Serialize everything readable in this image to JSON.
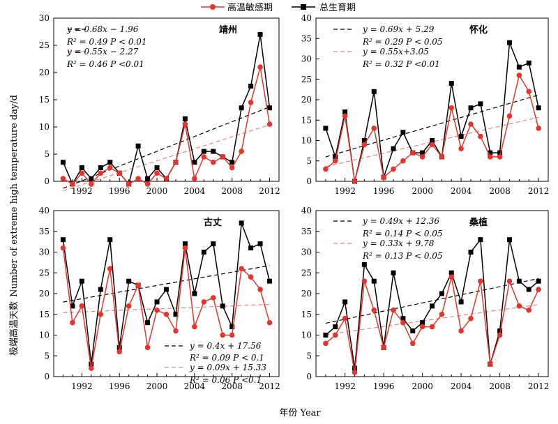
{
  "legend": {
    "series_red": "高温敏感期",
    "series_black": "总生育期"
  },
  "axes": {
    "ylabel": "极端高温天数",
    "ylabel_en": "Number of extreme high temperature day/d",
    "xlabel": "年份 Year"
  },
  "colors": {
    "black": "#000000",
    "red": "#e8332a",
    "red_trend": "#f08080"
  },
  "chart_data": [
    {
      "type": "line",
      "title": "靖州",
      "x": [
        1990,
        1991,
        1992,
        1993,
        1994,
        1995,
        1996,
        1997,
        1998,
        1999,
        2000,
        2001,
        2002,
        2003,
        2004,
        2005,
        2006,
        2007,
        2008,
        2009,
        2010,
        2011,
        2012
      ],
      "series": [
        {
          "name": "总生育期",
          "color": "#000000",
          "marker": "square",
          "values": [
            3.5,
            -0.5,
            2.5,
            0.5,
            2.5,
            3.5,
            1.5,
            -0.5,
            6.5,
            0.5,
            2.5,
            0.5,
            3.5,
            11.5,
            3.5,
            5.5,
            5.5,
            4.5,
            3.5,
            13.5,
            17.5,
            27,
            13.5
          ]
        },
        {
          "name": "高温敏感期",
          "color": "#e8332a",
          "marker": "circle",
          "values": [
            0.5,
            -0.5,
            1.5,
            -0.5,
            1.5,
            2.5,
            1.5,
            -0.5,
            0.5,
            -0.5,
            1.5,
            0.5,
            3.5,
            10.5,
            0.5,
            4.5,
            3.5,
            4.5,
            2.5,
            5.5,
            14.5,
            21,
            10.5
          ]
        }
      ],
      "trends": [
        {
          "color": "#000000",
          "slope": 0.68,
          "intercept": -1.96,
          "eq": "y = 0.68x − 1.96",
          "r2": "R² = 0.49",
          "p": "P < 0.01"
        },
        {
          "color": "#e8332a",
          "slope": 0.55,
          "intercept": -2.27,
          "eq": "y = 0.55x − 2.27",
          "r2": "R² = 0.46",
          "p": "P <0.01"
        }
      ],
      "ylim": [
        0,
        30
      ],
      "yticks": [
        0,
        5,
        10,
        15,
        20,
        25,
        30
      ],
      "xticks": [
        1992,
        1996,
        2000,
        2004,
        2008,
        2012
      ]
    },
    {
      "type": "line",
      "title": "怀化",
      "x": [
        1990,
        1991,
        1992,
        1993,
        1994,
        1995,
        1996,
        1997,
        1998,
        1999,
        2000,
        2001,
        2002,
        2003,
        2004,
        2005,
        2006,
        2007,
        2008,
        2009,
        2010,
        2011,
        2012
      ],
      "series": [
        {
          "name": "总生育期",
          "color": "#000000",
          "marker": "square",
          "values": [
            13,
            6,
            17,
            0,
            10,
            22,
            1,
            8,
            12,
            7,
            7,
            10,
            6,
            24,
            11,
            18,
            19,
            7,
            7,
            34,
            28,
            29,
            18
          ]
        },
        {
          "name": "高温敏感期",
          "color": "#e8332a",
          "marker": "circle",
          "values": [
            3,
            5,
            16,
            0,
            9,
            13,
            1,
            3,
            5,
            7,
            6,
            9,
            6,
            18,
            8,
            14,
            11,
            6,
            6,
            16,
            26,
            22,
            13
          ]
        }
      ],
      "trends": [
        {
          "color": "#000000",
          "slope": 0.69,
          "intercept": 5.29,
          "eq": "y = 0.69x + 5.29",
          "r2": "R² = 0.29",
          "p": "P < 0.05"
        },
        {
          "color": "#e8332a",
          "slope": 0.55,
          "intercept": 3.05,
          "eq": "y = 0.55x+3.05",
          "r2": "R² = 0.32",
          "p": "P <0.01"
        }
      ],
      "ylim": [
        0,
        40
      ],
      "yticks": [
        0,
        5,
        10,
        15,
        20,
        25,
        30,
        35,
        40
      ],
      "xticks": [
        1992,
        1996,
        2000,
        2004,
        2008,
        2012
      ]
    },
    {
      "type": "line",
      "title": "古丈",
      "x": [
        1990,
        1991,
        1992,
        1993,
        1994,
        1995,
        1996,
        1997,
        1998,
        1999,
        2000,
        2001,
        2002,
        2003,
        2004,
        2005,
        2006,
        2007,
        2008,
        2009,
        2010,
        2011,
        2012
      ],
      "series": [
        {
          "name": "总生育期",
          "color": "#000000",
          "marker": "square",
          "values": [
            33,
            17,
            23,
            3,
            21,
            33,
            7,
            23,
            22,
            13,
            18,
            21,
            15,
            32,
            20,
            30,
            32,
            17,
            12,
            37,
            31,
            32,
            23
          ]
        },
        {
          "name": "高温敏感期",
          "color": "#e8332a",
          "marker": "circle",
          "values": [
            31,
            13,
            17,
            2,
            15,
            26,
            6,
            17,
            22,
            7,
            16,
            15,
            11,
            31,
            12,
            18,
            19,
            10,
            10,
            26,
            24,
            21,
            13
          ]
        }
      ],
      "trends": [
        {
          "color": "#000000",
          "slope": 0.4,
          "intercept": 17.56,
          "eq": "y = 0.4x + 17.56",
          "r2": "R² = 0.09",
          "p": "P < 0.1"
        },
        {
          "color": "#e8332a",
          "slope": 0.09,
          "intercept": 15.33,
          "eq": "y = 0.09x + 15.33",
          "r2": "R² = 0.06",
          "p": "P <0.1"
        }
      ],
      "ylim": [
        0,
        40
      ],
      "yticks": [
        0,
        5,
        10,
        15,
        20,
        25,
        30,
        35,
        40
      ],
      "xticks": [
        1992,
        1996,
        2000,
        2004,
        2008,
        2012
      ]
    },
    {
      "type": "line",
      "title": "桑植",
      "x": [
        1990,
        1991,
        1992,
        1993,
        1994,
        1995,
        1996,
        1997,
        1998,
        1999,
        2000,
        2001,
        2002,
        2003,
        2004,
        2005,
        2006,
        2007,
        2008,
        2009,
        2010,
        2011,
        2012
      ],
      "series": [
        {
          "name": "总生育期",
          "color": "#000000",
          "marker": "square",
          "values": [
            10,
            12,
            18,
            2,
            27,
            23,
            7,
            25,
            14,
            11,
            13,
            17,
            20,
            25,
            18,
            30,
            33,
            3,
            11,
            33,
            23,
            21,
            23
          ]
        },
        {
          "name": "高温敏感期",
          "color": "#e8332a",
          "marker": "circle",
          "values": [
            8,
            10,
            14,
            1,
            23,
            16,
            7,
            16,
            13,
            8,
            12,
            12,
            15,
            24,
            11,
            14,
            23,
            3,
            10,
            23,
            17,
            16,
            21
          ]
        }
      ],
      "trends": [
        {
          "color": "#000000",
          "slope": 0.49,
          "intercept": 12.36,
          "eq": "y = 0.49x + 12.36",
          "r2": "R² = 0.14",
          "p": "P < 0.05"
        },
        {
          "color": "#e8332a",
          "slope": 0.33,
          "intercept": 9.78,
          "eq": "y = 0.33x + 9.78",
          "r2": "R² = 0.13",
          "p": "P < 0.05"
        }
      ],
      "ylim": [
        0,
        40
      ],
      "yticks": [
        0,
        5,
        10,
        15,
        20,
        25,
        30,
        35,
        40
      ],
      "xticks": [
        1992,
        1996,
        2000,
        2004,
        2008,
        2012
      ]
    }
  ]
}
